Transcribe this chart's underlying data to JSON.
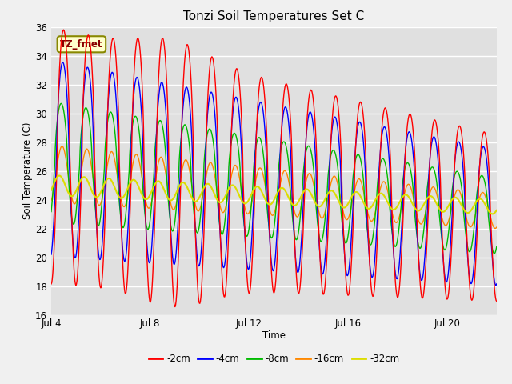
{
  "title": "Tonzi Soil Temperatures Set C",
  "xlabel": "Time",
  "ylabel": "Soil Temperature (C)",
  "annotation": "TZ_fmet",
  "ylim": [
    16,
    36
  ],
  "yticks": [
    16,
    18,
    20,
    22,
    24,
    26,
    28,
    30,
    32,
    34,
    36
  ],
  "xtick_labels": [
    "Jul 4",
    "Jul 8",
    "Jul 12",
    "Jul 16",
    "Jul 20"
  ],
  "xtick_positions": [
    0,
    4,
    8,
    12,
    16
  ],
  "x_max": 18,
  "colors": {
    "-2cm": "#ff0000",
    "-4cm": "#0000ff",
    "-8cm": "#00bb00",
    "-16cm": "#ff8800",
    "-32cm": "#dddd00"
  },
  "bg_color": "#e0e0e0",
  "fig_bg_color": "#f0f0f0",
  "legend_labels": [
    "-2cm",
    "-4cm",
    "-8cm",
    "-16cm",
    "-32cm"
  ]
}
